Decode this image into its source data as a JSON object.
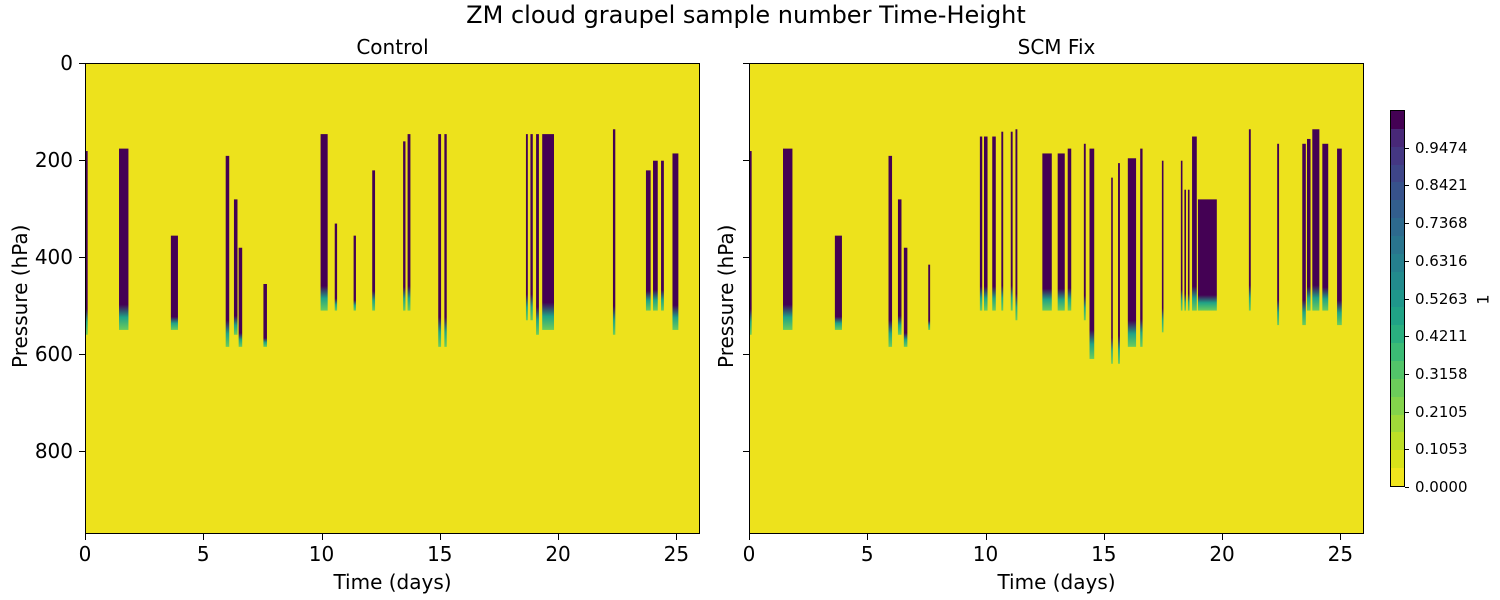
{
  "figure": {
    "suptitle": "ZM cloud graupel sample number Time-Height",
    "background": "#ffffff"
  },
  "panels": [
    {
      "title": "Control",
      "xlabel": "Time (days)",
      "ylabel": "Pressure (hPa)"
    },
    {
      "title": "SCM Fix",
      "xlabel": "Time (days)",
      "ylabel": "Pressure (hPa)"
    }
  ],
  "axes": {
    "x_ticks": [
      "0",
      "5",
      "10",
      "15",
      "20",
      "25"
    ],
    "y_ticks": [
      "0",
      "200",
      "400",
      "600",
      "800"
    ]
  },
  "colorbar": {
    "label": "1",
    "ticks": [
      "0.0000",
      "0.1053",
      "0.2105",
      "0.3158",
      "0.4211",
      "0.5263",
      "0.6316",
      "0.7368",
      "0.8421",
      "0.9474"
    ],
    "colors": [
      "#f0e51d",
      "#d8e219",
      "#bddf26",
      "#a0da39",
      "#84d44b",
      "#6ccd5a",
      "#52c569",
      "#3bbb75",
      "#2aaf7f",
      "#20a386",
      "#1f978b",
      "#228b8d",
      "#25808e",
      "#29758e",
      "#2d6a8e",
      "#325e8d",
      "#37528b",
      "#3e4588",
      "#443783",
      "#482878",
      "#440154"
    ]
  },
  "chart_data": [
    {
      "type": "heatmap",
      "title": "Control",
      "suptitle": "ZM cloud graupel sample number Time-Height",
      "xlabel": "Time (days)",
      "ylabel": "Pressure (hPa)",
      "xlim": [
        0,
        26
      ],
      "ylim": [
        970,
        0
      ],
      "x_ticks": [
        0,
        5,
        10,
        15,
        20,
        25
      ],
      "y_ticks": [
        0,
        200,
        400,
        600,
        800
      ],
      "colorbar": {
        "label": "1",
        "range": [
          0,
          1
        ],
        "colormap": "viridis_r",
        "levels": 20
      },
      "background_value": 0,
      "events": [
        {
          "t": 0.02,
          "w": 0.1,
          "top": 180,
          "bottom": 560
        },
        {
          "t": 1.6,
          "w": 0.4,
          "top": 175,
          "bottom": 550
        },
        {
          "t": 3.75,
          "w": 0.3,
          "top": 355,
          "bottom": 550
        },
        {
          "t": 6.0,
          "w": 0.15,
          "top": 190,
          "bottom": 585
        },
        {
          "t": 6.35,
          "w": 0.15,
          "top": 280,
          "bottom": 560
        },
        {
          "t": 6.55,
          "w": 0.15,
          "top": 380,
          "bottom": 585
        },
        {
          "t": 7.6,
          "w": 0.15,
          "top": 455,
          "bottom": 585
        },
        {
          "t": 10.1,
          "w": 0.3,
          "top": 145,
          "bottom": 510
        },
        {
          "t": 10.6,
          "w": 0.1,
          "top": 330,
          "bottom": 510
        },
        {
          "t": 11.4,
          "w": 0.1,
          "top": 355,
          "bottom": 510
        },
        {
          "t": 12.2,
          "w": 0.12,
          "top": 220,
          "bottom": 510
        },
        {
          "t": 13.5,
          "w": 0.1,
          "top": 160,
          "bottom": 510
        },
        {
          "t": 13.7,
          "w": 0.12,
          "top": 145,
          "bottom": 510
        },
        {
          "t": 15.0,
          "w": 0.12,
          "top": 145,
          "bottom": 585
        },
        {
          "t": 15.25,
          "w": 0.1,
          "top": 145,
          "bottom": 585
        },
        {
          "t": 18.7,
          "w": 0.08,
          "top": 145,
          "bottom": 530
        },
        {
          "t": 18.9,
          "w": 0.1,
          "top": 145,
          "bottom": 530
        },
        {
          "t": 19.15,
          "w": 0.12,
          "top": 145,
          "bottom": 560
        },
        {
          "t": 19.6,
          "w": 0.5,
          "top": 145,
          "bottom": 550
        },
        {
          "t": 22.4,
          "w": 0.1,
          "top": 135,
          "bottom": 560
        },
        {
          "t": 23.85,
          "w": 0.2,
          "top": 220,
          "bottom": 510
        },
        {
          "t": 24.15,
          "w": 0.2,
          "top": 200,
          "bottom": 510
        },
        {
          "t": 24.45,
          "w": 0.12,
          "top": 200,
          "bottom": 510
        },
        {
          "t": 25.0,
          "w": 0.25,
          "top": 185,
          "bottom": 550
        }
      ]
    },
    {
      "type": "heatmap",
      "title": "SCM Fix",
      "suptitle": "ZM cloud graupel sample number Time-Height",
      "xlabel": "Time (days)",
      "ylabel": "Pressure (hPa)",
      "xlim": [
        0,
        26
      ],
      "ylim": [
        970,
        0
      ],
      "x_ticks": [
        0,
        5,
        10,
        15,
        20,
        25
      ],
      "y_ticks": [
        0,
        200,
        400,
        600,
        800
      ],
      "colorbar": {
        "label": "1",
        "range": [
          0,
          1
        ],
        "colormap": "viridis_r",
        "levels": 20
      },
      "background_value": 0,
      "events": [
        {
          "t": 0.02,
          "w": 0.1,
          "top": 180,
          "bottom": 560
        },
        {
          "t": 1.6,
          "w": 0.4,
          "top": 175,
          "bottom": 550
        },
        {
          "t": 3.75,
          "w": 0.3,
          "top": 355,
          "bottom": 550
        },
        {
          "t": 5.95,
          "w": 0.15,
          "top": 190,
          "bottom": 585
        },
        {
          "t": 6.35,
          "w": 0.15,
          "top": 280,
          "bottom": 560
        },
        {
          "t": 6.6,
          "w": 0.15,
          "top": 380,
          "bottom": 585
        },
        {
          "t": 7.6,
          "w": 0.08,
          "top": 415,
          "bottom": 550
        },
        {
          "t": 9.8,
          "w": 0.1,
          "top": 150,
          "bottom": 510
        },
        {
          "t": 10.0,
          "w": 0.15,
          "top": 150,
          "bottom": 510
        },
        {
          "t": 10.35,
          "w": 0.15,
          "top": 150,
          "bottom": 510
        },
        {
          "t": 10.7,
          "w": 0.08,
          "top": 140,
          "bottom": 510
        },
        {
          "t": 11.1,
          "w": 0.08,
          "top": 140,
          "bottom": 510
        },
        {
          "t": 11.3,
          "w": 0.08,
          "top": 135,
          "bottom": 530
        },
        {
          "t": 12.6,
          "w": 0.4,
          "top": 185,
          "bottom": 510
        },
        {
          "t": 13.2,
          "w": 0.3,
          "top": 185,
          "bottom": 510
        },
        {
          "t": 13.55,
          "w": 0.15,
          "top": 175,
          "bottom": 510
        },
        {
          "t": 14.2,
          "w": 0.08,
          "top": 165,
          "bottom": 530
        },
        {
          "t": 14.5,
          "w": 0.2,
          "top": 175,
          "bottom": 610
        },
        {
          "t": 15.35,
          "w": 0.06,
          "top": 235,
          "bottom": 620
        },
        {
          "t": 15.65,
          "w": 0.08,
          "top": 205,
          "bottom": 620
        },
        {
          "t": 16.2,
          "w": 0.35,
          "top": 195,
          "bottom": 585
        },
        {
          "t": 16.6,
          "w": 0.1,
          "top": 175,
          "bottom": 585
        },
        {
          "t": 17.5,
          "w": 0.06,
          "top": 200,
          "bottom": 555
        },
        {
          "t": 18.3,
          "w": 0.05,
          "top": 200,
          "bottom": 510
        },
        {
          "t": 18.45,
          "w": 0.05,
          "top": 260,
          "bottom": 510
        },
        {
          "t": 18.6,
          "w": 0.05,
          "top": 260,
          "bottom": 510
        },
        {
          "t": 18.85,
          "w": 0.2,
          "top": 150,
          "bottom": 510
        },
        {
          "t": 19.4,
          "w": 0.8,
          "top": 280,
          "bottom": 510
        },
        {
          "t": 21.2,
          "w": 0.08,
          "top": 135,
          "bottom": 510
        },
        {
          "t": 22.4,
          "w": 0.08,
          "top": 165,
          "bottom": 540
        },
        {
          "t": 23.5,
          "w": 0.15,
          "top": 165,
          "bottom": 540
        },
        {
          "t": 23.7,
          "w": 0.15,
          "top": 155,
          "bottom": 510
        },
        {
          "t": 24.0,
          "w": 0.3,
          "top": 135,
          "bottom": 510
        },
        {
          "t": 24.4,
          "w": 0.25,
          "top": 165,
          "bottom": 510
        },
        {
          "t": 25.0,
          "w": 0.2,
          "top": 175,
          "bottom": 540
        }
      ]
    }
  ]
}
